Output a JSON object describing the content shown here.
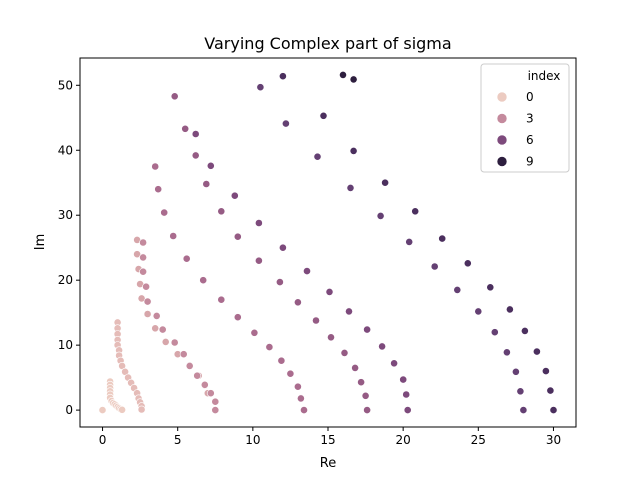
{
  "chart_data": {
    "type": "scatter",
    "title": "Varying Complex part of sigma",
    "xlabel": "Re",
    "ylabel": "Im",
    "xlim": [
      -1.5,
      31.5
    ],
    "ylim": [
      -2.6,
      54.2
    ],
    "xticks": [
      0,
      5,
      10,
      15,
      20,
      25,
      30
    ],
    "yticks": [
      0,
      10,
      20,
      30,
      40,
      50
    ],
    "grid": false,
    "legend": {
      "title": "index",
      "placement": "top-right",
      "entries": [
        {
          "label": "0",
          "color": "#eccbc1"
        },
        {
          "label": "3",
          "color": "#c48a9d"
        },
        {
          "label": "6",
          "color": "#7d4a7c"
        },
        {
          "label": "9",
          "color": "#2d1e3e"
        }
      ]
    },
    "series": [
      {
        "index": 0,
        "color": "#eccbc1",
        "points": [
          [
            0.0,
            0.0
          ],
          [
            0.5,
            4.4
          ],
          [
            0.5,
            3.9
          ],
          [
            0.5,
            3.4
          ],
          [
            0.5,
            2.9
          ],
          [
            0.5,
            2.4
          ],
          [
            0.5,
            1.9
          ],
          [
            0.6,
            1.4
          ],
          [
            0.7,
            1.1
          ],
          [
            0.8,
            0.9
          ],
          [
            0.9,
            0.7
          ],
          [
            1.0,
            0.5
          ],
          [
            1.1,
            0.3
          ],
          [
            1.2,
            0.15
          ],
          [
            1.3,
            0.05
          ]
        ]
      },
      {
        "index": 1,
        "color": "#e5bcb8",
        "points": [
          [
            1.0,
            13.5
          ],
          [
            1.0,
            12.6
          ],
          [
            1.0,
            11.7
          ],
          [
            1.0,
            10.8
          ],
          [
            1.0,
            10.0
          ],
          [
            1.1,
            9.2
          ],
          [
            1.1,
            8.4
          ],
          [
            1.2,
            7.6
          ],
          [
            1.3,
            6.8
          ],
          [
            1.5,
            5.9
          ],
          [
            1.7,
            5.0
          ],
          [
            1.9,
            4.2
          ],
          [
            2.1,
            3.4
          ],
          [
            2.3,
            2.6
          ],
          [
            2.4,
            1.8
          ],
          [
            2.5,
            1.2
          ],
          [
            2.6,
            0.6
          ],
          [
            2.6,
            0.1
          ]
        ]
      },
      {
        "index": 2,
        "color": "#d7a6aa",
        "points": [
          [
            2.3,
            26.2
          ],
          [
            2.3,
            24.0
          ],
          [
            2.4,
            21.7
          ],
          [
            2.5,
            19.4
          ],
          [
            2.6,
            17.2
          ],
          [
            3.0,
            14.8
          ],
          [
            3.5,
            12.6
          ],
          [
            4.2,
            10.5
          ],
          [
            5.0,
            8.6
          ],
          [
            5.8,
            6.9
          ],
          [
            6.4,
            5.3
          ],
          [
            6.8,
            3.8
          ],
          [
            7.0,
            2.6
          ]
        ]
      },
      {
        "index": 3,
        "color": "#c48a9d",
        "points": [
          [
            2.7,
            25.8
          ],
          [
            2.7,
            23.5
          ],
          [
            2.7,
            21.3
          ],
          [
            2.9,
            19.0
          ],
          [
            3.0,
            16.7
          ],
          [
            3.6,
            14.5
          ],
          [
            4.0,
            12.4
          ],
          [
            4.8,
            10.4
          ],
          [
            5.4,
            8.6
          ],
          [
            5.8,
            6.8
          ],
          [
            6.3,
            5.3
          ],
          [
            6.8,
            3.9
          ],
          [
            7.2,
            2.6
          ],
          [
            7.5,
            1.3
          ],
          [
            7.5,
            0.0
          ]
        ]
      },
      {
        "index": 4,
        "color": "#aa6c8e",
        "points": [
          [
            3.5,
            37.5
          ],
          [
            3.7,
            34.0
          ],
          [
            4.1,
            30.4
          ],
          [
            4.7,
            26.8
          ],
          [
            5.6,
            23.3
          ],
          [
            6.7,
            20.0
          ],
          [
            7.9,
            17.0
          ],
          [
            9.0,
            14.3
          ],
          [
            10.1,
            11.9
          ],
          [
            11.1,
            9.7
          ],
          [
            11.9,
            7.6
          ],
          [
            12.5,
            5.6
          ],
          [
            13.0,
            3.6
          ],
          [
            13.2,
            1.8
          ],
          [
            13.4,
            0.0
          ]
        ]
      },
      {
        "index": 5,
        "color": "#955b84",
        "points": [
          [
            4.8,
            48.3
          ],
          [
            5.5,
            43.3
          ],
          [
            6.2,
            39.2
          ],
          [
            6.9,
            34.8
          ],
          [
            7.9,
            30.6
          ],
          [
            9.0,
            26.7
          ],
          [
            10.4,
            23.0
          ],
          [
            11.8,
            19.7
          ],
          [
            13.0,
            16.6
          ],
          [
            14.2,
            13.8
          ],
          [
            15.2,
            11.2
          ],
          [
            16.1,
            8.8
          ],
          [
            16.8,
            6.5
          ],
          [
            17.2,
            4.3
          ],
          [
            17.5,
            2.2
          ],
          [
            17.6,
            0.0
          ]
        ]
      },
      {
        "index": 6,
        "color": "#7d4a7c",
        "points": [
          [
            6.2,
            42.5
          ],
          [
            7.2,
            37.6
          ],
          [
            8.8,
            33.0
          ],
          [
            10.4,
            28.8
          ],
          [
            12.0,
            25.0
          ],
          [
            13.6,
            21.4
          ],
          [
            15.1,
            18.2
          ],
          [
            16.4,
            15.2
          ],
          [
            17.6,
            12.4
          ],
          [
            18.6,
            9.8
          ],
          [
            19.4,
            7.2
          ],
          [
            20.0,
            4.7
          ],
          [
            20.2,
            2.4
          ],
          [
            20.3,
            0.0
          ]
        ]
      },
      {
        "index": 7,
        "color": "#644073",
        "points": [
          [
            10.5,
            49.7
          ],
          [
            12.2,
            44.1
          ],
          [
            14.3,
            39.0
          ],
          [
            16.5,
            34.2
          ],
          [
            18.5,
            29.9
          ],
          [
            20.4,
            25.9
          ],
          [
            22.1,
            22.1
          ],
          [
            23.6,
            18.5
          ],
          [
            25.0,
            15.2
          ],
          [
            26.1,
            12.0
          ],
          [
            26.9,
            8.9
          ],
          [
            27.5,
            5.9
          ],
          [
            27.8,
            2.9
          ],
          [
            28.0,
            0.0
          ]
        ]
      },
      {
        "index": 8,
        "color": "#4b2f5e",
        "points": [
          [
            12.0,
            51.4
          ],
          [
            14.7,
            45.3
          ],
          [
            16.7,
            39.9
          ],
          [
            18.8,
            35.0
          ],
          [
            20.8,
            30.6
          ],
          [
            22.6,
            26.4
          ],
          [
            24.3,
            22.6
          ],
          [
            25.8,
            18.9
          ],
          [
            27.1,
            15.5
          ],
          [
            28.1,
            12.2
          ],
          [
            28.9,
            9.0
          ],
          [
            29.5,
            6.0
          ],
          [
            29.8,
            3.0
          ],
          [
            30.0,
            0.0
          ]
        ]
      },
      {
        "index": 9,
        "color": "#2d1e3e",
        "points": [
          [
            16.0,
            51.6
          ],
          [
            16.7,
            50.9
          ]
        ]
      }
    ]
  }
}
